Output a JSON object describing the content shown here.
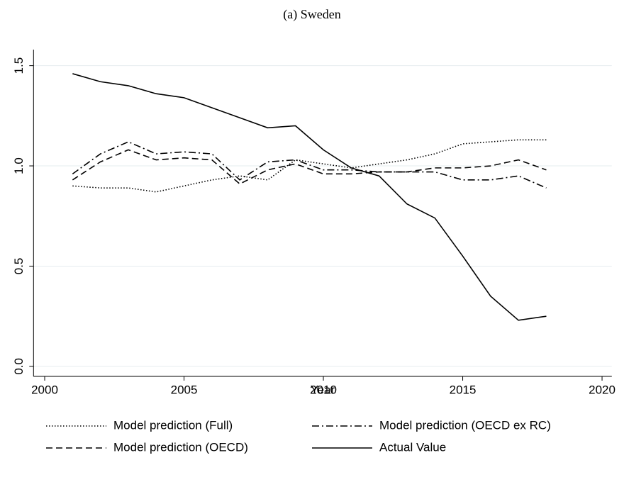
{
  "chart_data": {
    "type": "line",
    "title": "(a) Sweden",
    "x_label": "Year",
    "x": [
      2001,
      2002,
      2003,
      2004,
      2005,
      2006,
      2007,
      2008,
      2009,
      2010,
      2011,
      2012,
      2013,
      2014,
      2015,
      2016,
      2017,
      2018
    ],
    "series": [
      {
        "name": "Model prediction (Full)",
        "color": "#000000",
        "dash": "dotted",
        "values": [
          0.9,
          0.89,
          0.89,
          0.87,
          0.9,
          0.93,
          0.95,
          0.93,
          1.03,
          1.01,
          0.99,
          1.01,
          1.03,
          1.06,
          1.11,
          1.12,
          1.13,
          1.13
        ]
      },
      {
        "name": "Model prediction (OECD ex RC)",
        "color": "#000000",
        "dash": "dashdot",
        "values": [
          0.96,
          1.06,
          1.12,
          1.06,
          1.07,
          1.06,
          0.93,
          1.02,
          1.03,
          0.98,
          0.98,
          0.97,
          0.97,
          0.97,
          0.93,
          0.93,
          0.95,
          0.89
        ]
      },
      {
        "name": "Model prediction (OECD)",
        "color": "#000000",
        "dash": "dashed",
        "values": [
          0.93,
          1.02,
          1.08,
          1.03,
          1.04,
          1.03,
          0.91,
          0.98,
          1.01,
          0.96,
          0.96,
          0.97,
          0.97,
          0.99,
          0.99,
          1.0,
          1.03,
          0.98
        ]
      },
      {
        "name": "Actual Value",
        "color": "#000000",
        "dash": "solid",
        "values": [
          1.46,
          1.42,
          1.4,
          1.36,
          1.34,
          1.29,
          1.24,
          1.19,
          1.2,
          1.08,
          0.99,
          0.95,
          0.81,
          0.74,
          0.55,
          0.35,
          0.23,
          0.25
        ]
      }
    ],
    "xlim": [
      1999.6,
      2020.35
    ],
    "xticks": [
      2000,
      2005,
      2010,
      2015,
      2020
    ],
    "ylim": [
      -0.05,
      1.58
    ],
    "yticks": [
      {
        "value": 0,
        "label": "0.0"
      },
      {
        "value": 0.5,
        "label": "0.5"
      },
      {
        "value": 1,
        "label": "1.0"
      },
      {
        "value": 1.5,
        "label": "1.5"
      }
    ],
    "grid": true,
    "legend_position": "bottom"
  }
}
